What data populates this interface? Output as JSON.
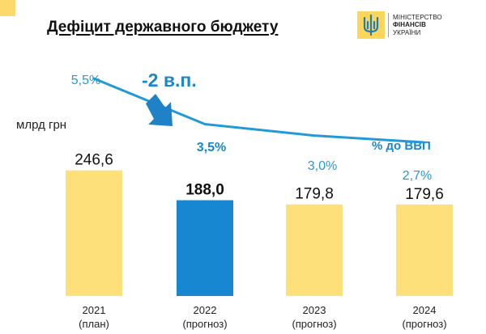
{
  "header": {
    "title": "Дефіцит державного бюджету",
    "ministry": [
      "МІНІСТЕРСТВО",
      "ФІНАНСІВ",
      "УКРАЇНИ"
    ]
  },
  "colors": {
    "bar_default": "#fee07a",
    "bar_highlight": "#1787d2",
    "line": "#229ad8",
    "accent_text": "#1a87c9",
    "corner": "#fcd96a"
  },
  "annotation": {
    "badge": "-2 в.п."
  },
  "chart_data": {
    "type": "bar",
    "title": "Дефіцит державного бюджету",
    "ylabel": "млрд грн",
    "categories": [
      [
        "2021",
        "(план)"
      ],
      [
        "2022",
        "(прогноз)"
      ],
      [
        "2023",
        "(прогноз)"
      ],
      [
        "2024",
        "(прогноз)"
      ]
    ],
    "bar_series": {
      "name": "млрд грн",
      "values": [
        246.6,
        188.0,
        179.8,
        179.6
      ],
      "labels": [
        "246,6",
        "188,0",
        "179,8",
        "179,6"
      ],
      "highlight_index": 1
    },
    "ylim": [
      0,
      300
    ],
    "line_series": {
      "name": "% до ВВП",
      "values": [
        5.5,
        3.5,
        3.0,
        2.7
      ],
      "labels": [
        "5,5%",
        "3,5%",
        "3,0%",
        "2,7%"
      ],
      "highlight_index": 1
    },
    "line_ylim": [
      0,
      6
    ]
  }
}
